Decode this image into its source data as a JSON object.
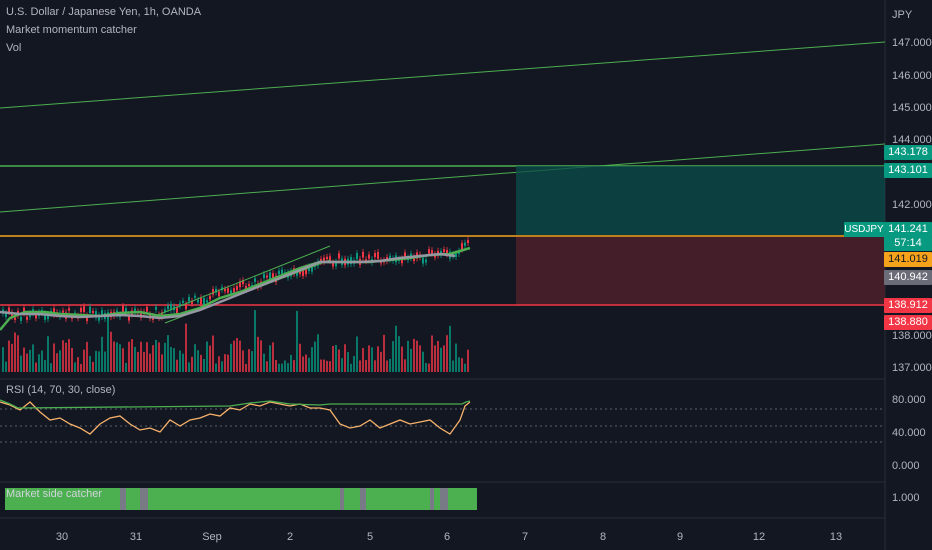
{
  "header": {
    "symbol_line": "U.S. Dollar / Japanese Yen, 1h, OANDA",
    "indicator1": "Market momentum catcher",
    "indicator2": "Vol"
  },
  "price_axis": {
    "currency": "JPY",
    "labels": [
      "147.000",
      "146.000",
      "145.000",
      "144.000",
      "142.000",
      "138.000",
      "137.000"
    ]
  },
  "price_tags": [
    {
      "name": "target-high",
      "text": "143.178",
      "color": "#089981"
    },
    {
      "name": "target-low",
      "text": "143.101",
      "color": "#089981"
    },
    {
      "name": "symbol",
      "text": "USDJPY",
      "color": "#089981"
    },
    {
      "name": "last-price",
      "text": "141.241",
      "color": "#089981"
    },
    {
      "name": "countdown",
      "text": "57:14",
      "color": "#089981"
    },
    {
      "name": "orange-level",
      "text": "141.019",
      "color": "#f7a21b"
    },
    {
      "name": "gray-level",
      "text": "140.942",
      "color": "#6a6d78"
    },
    {
      "name": "stop-high",
      "text": "138.912",
      "color": "#f23645"
    },
    {
      "name": "stop-low",
      "text": "138.880",
      "color": "#f23645"
    }
  ],
  "rsi": {
    "title": "RSI (14, 70, 30, close)",
    "labels": [
      "80.000",
      "40.000",
      "0.000"
    ]
  },
  "side_catcher": {
    "title": "Market side catcher",
    "label": "1.000"
  },
  "time_axis": {
    "labels": [
      "30",
      "31",
      "Sep",
      "2",
      "5",
      "6",
      "7",
      "8",
      "9",
      "12",
      "13"
    ]
  },
  "colors": {
    "background": "#131722",
    "up": "#089981",
    "down": "#f23645",
    "ma_green": "#4caf50",
    "ma_gray": "#9598a1",
    "rsi_line": "#f7b26b",
    "orange": "#f7a21b"
  }
}
